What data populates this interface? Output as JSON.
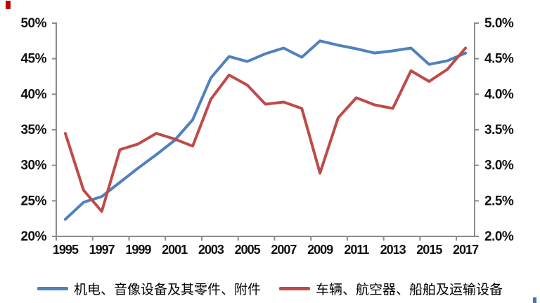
{
  "page": {
    "background": "#ffffff"
  },
  "artifacts": {
    "top_left_mark_color": "#c00000",
    "bottom_right_mark_color": "#4472c4"
  },
  "chart_data": {
    "type": "line",
    "title": "",
    "grid": false,
    "legend_position": "bottom",
    "x": [
      1995,
      1996,
      1997,
      1998,
      1999,
      2000,
      2001,
      2002,
      2003,
      2004,
      2005,
      2006,
      2007,
      2008,
      2009,
      2010,
      2011,
      2012,
      2013,
      2014,
      2015,
      2016,
      2017
    ],
    "x_tick_labels": [
      "1995",
      "1997",
      "1999",
      "2001",
      "2003",
      "2005",
      "2007",
      "2009",
      "2011",
      "2013",
      "2015",
      "2017"
    ],
    "left_axis": {
      "min": 20,
      "max": 50,
      "step": 5,
      "tick_labels_top_to_bottom": [
        "50%",
        "45%",
        "40%",
        "35%",
        "30%",
        "25%",
        "20%"
      ]
    },
    "right_axis": {
      "min": 2.0,
      "max": 5.0,
      "step": 0.5,
      "tick_labels_top_to_bottom": [
        "5.0%",
        "4.5%",
        "4.0%",
        "3.5%",
        "3.0%",
        "2.5%",
        "2.0%"
      ]
    },
    "series": [
      {
        "name": "机电、音像设备及其零件、附件",
        "axis": "left",
        "color": "#4F81BD",
        "values": [
          22.4,
          24.8,
          25.6,
          27.6,
          29.6,
          31.5,
          33.5,
          36.4,
          42.3,
          45.3,
          44.6,
          45.7,
          46.5,
          45.2,
          47.5,
          46.9,
          46.4,
          45.8,
          46.1,
          46.5,
          44.2,
          44.7,
          45.8
        ]
      },
      {
        "name": "车辆、航空器、船舶及运输设备",
        "axis": "right",
        "color": "#BE4B48",
        "values": [
          3.45,
          2.65,
          2.35,
          3.22,
          3.3,
          3.45,
          3.37,
          3.27,
          3.93,
          4.27,
          4.13,
          3.86,
          3.89,
          3.8,
          2.89,
          3.67,
          3.95,
          3.85,
          3.8,
          4.33,
          4.18,
          4.35,
          4.65
        ]
      }
    ],
    "axis_color": "#8c8c8c",
    "label_color": "#111111"
  }
}
